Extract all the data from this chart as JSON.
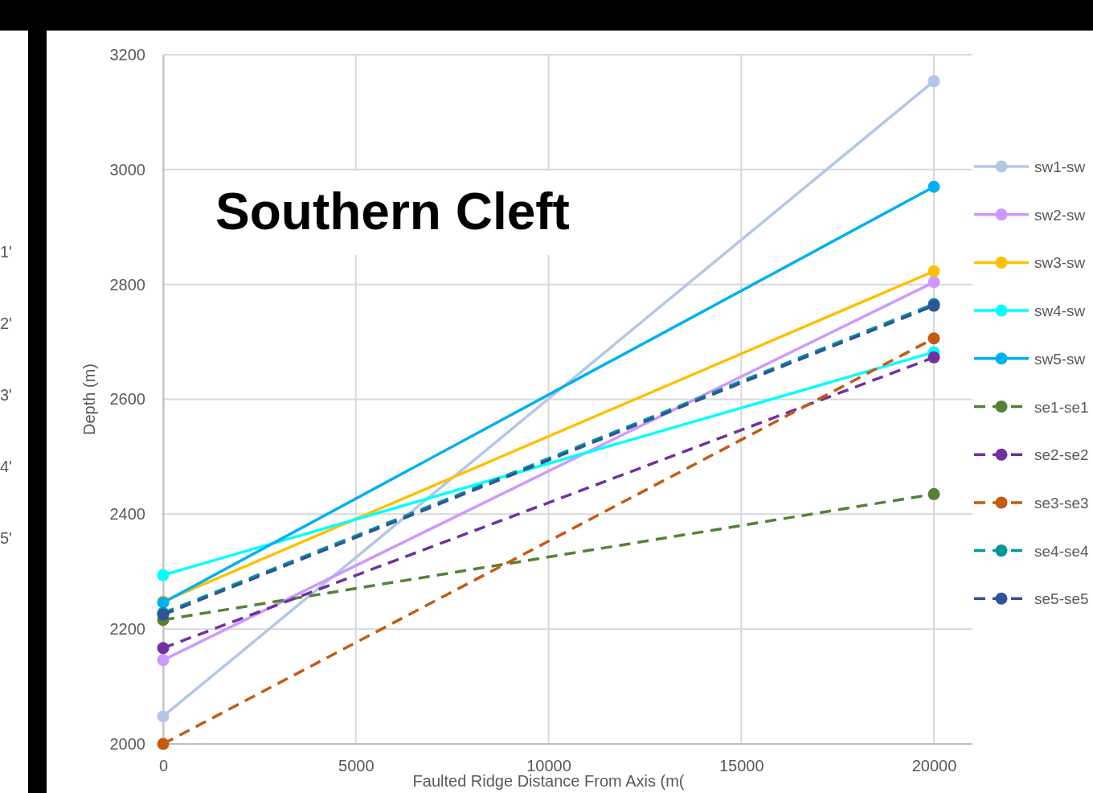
{
  "chart_data": {
    "type": "line",
    "title": "Southern Cleft",
    "xlabel": "Faulted Ridge Distance From Axis (m(",
    "ylabel": "Depth (m)",
    "x": [
      0,
      20000
    ],
    "xlim": [
      0,
      21000
    ],
    "xticks": [
      0,
      5000,
      10000,
      15000,
      20000
    ],
    "ylim": [
      2000,
      3200
    ],
    "yticks": [
      2000,
      2200,
      2400,
      2600,
      2800,
      3000,
      3200
    ],
    "grid": true,
    "legend": "right",
    "marker": "circle",
    "annotations": [
      "1'",
      "2'",
      "3'",
      "4'",
      "5'"
    ],
    "series": [
      {
        "name": "sw1-sw",
        "color": "#b4c7e7",
        "values": [
          2048,
          3154
        ],
        "line_style": "solid"
      },
      {
        "name": "sw2-sw",
        "color": "#cc99ff",
        "values": [
          2146,
          2804
        ],
        "line_style": "solid"
      },
      {
        "name": "sw3-sw",
        "color": "#ffc000",
        "values": [
          2248,
          2823
        ],
        "line_style": "solid"
      },
      {
        "name": "sw4-sw",
        "color": "#00ffff",
        "values": [
          2294,
          2682
        ],
        "line_style": "solid"
      },
      {
        "name": "sw5-sw",
        "color": "#00b0f0",
        "values": [
          2246,
          2970
        ],
        "line_style": "solid"
      },
      {
        "name": "se1-se1",
        "color": "#548235",
        "values": [
          2216,
          2435
        ],
        "line_style": "dashed"
      },
      {
        "name": "se2-se2",
        "color": "#7030a0",
        "values": [
          2167,
          2673
        ],
        "line_style": "dashed"
      },
      {
        "name": "se3-se3",
        "color": "#c55a11",
        "values": [
          2000,
          2706
        ],
        "line_style": "dashed"
      },
      {
        "name": "se4-se4",
        "color": "#009999",
        "values": [
          2228,
          2766
        ],
        "line_style": "dashed"
      },
      {
        "name": "se5-se5",
        "color": "#2f5597",
        "values": [
          2225,
          2763
        ],
        "line_style": "dashed"
      }
    ]
  }
}
